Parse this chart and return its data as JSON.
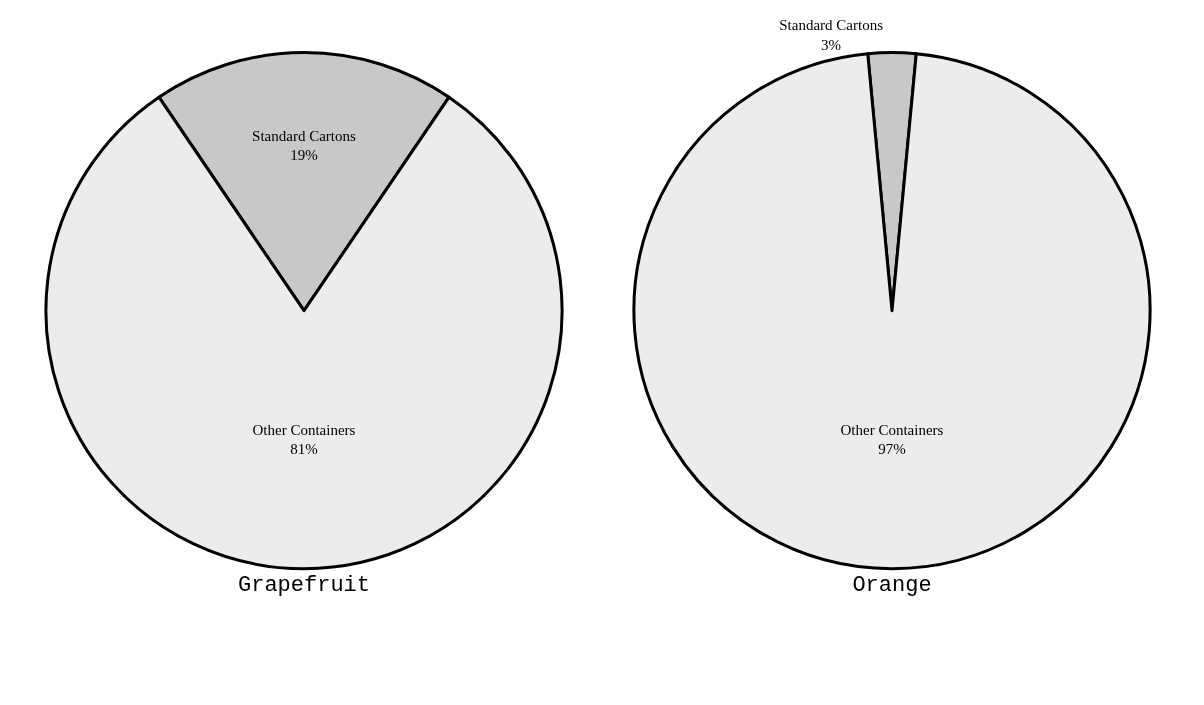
{
  "chart_data": [
    {
      "type": "pie",
      "title": "Grapefruit",
      "categories": [
        "Standard Cartons",
        "Other Containers"
      ],
      "values": [
        19,
        81
      ],
      "value_labels": [
        "19%",
        "81%"
      ],
      "colors": [
        "#c8c8c8",
        "#ececec"
      ]
    },
    {
      "type": "pie",
      "title": "Orange",
      "categories": [
        "Standard Cartons",
        "Other Containers"
      ],
      "values": [
        3,
        97
      ],
      "value_labels": [
        "3%",
        "97%"
      ],
      "colors": [
        "#c8c8c8",
        "#ececec"
      ]
    }
  ]
}
